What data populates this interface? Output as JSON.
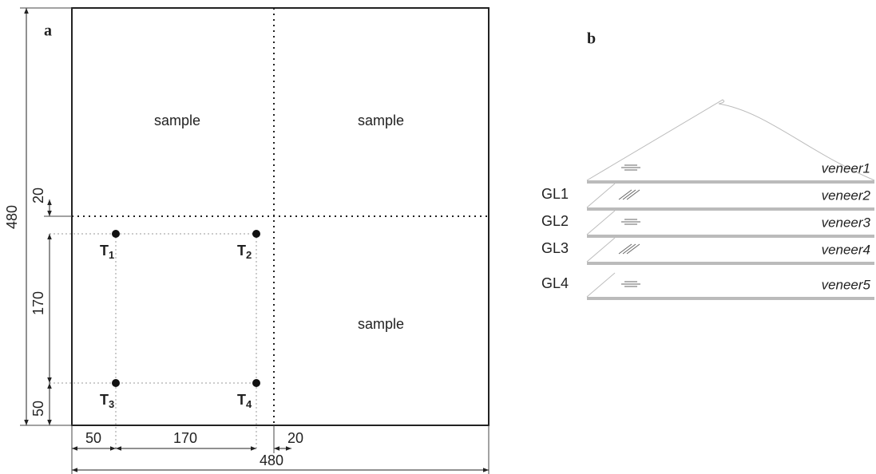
{
  "panel_a": {
    "label": "a",
    "samples": [
      "sample",
      "sample",
      "sample"
    ],
    "points": [
      "T1",
      "T2",
      "T3",
      "T4"
    ],
    "dimensions": {
      "left_total": 480,
      "left": [
        20,
        170,
        50
      ],
      "bottom": [
        50,
        170,
        20
      ],
      "bottom_total": 480
    }
  },
  "panel_b": {
    "label": "b",
    "glue_lines": [
      "GL1",
      "GL2",
      "GL3",
      "GL4"
    ],
    "veneers": [
      "veneer1",
      "veneer2",
      "veneer3",
      "veneer4",
      "veneer5"
    ]
  }
}
